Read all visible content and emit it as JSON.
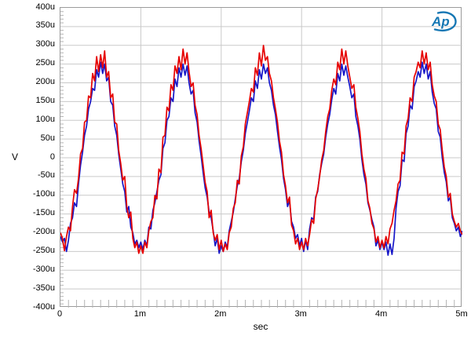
{
  "figure": {
    "ylabel": "V",
    "xlabel": "sec",
    "logo_text": "Ap"
  },
  "axes": {
    "y_tick_labels": [
      "400u",
      "350u",
      "300u",
      "250u",
      "200u",
      "150u",
      "100u",
      "50u",
      "0",
      "-50u",
      "-100u",
      "-150u",
      "-200u",
      "-250u",
      "-300u",
      "-350u",
      "-400u"
    ],
    "x_tick_labels": [
      "0",
      "1m",
      "2m",
      "3m",
      "4m",
      "5m"
    ]
  },
  "colors": {
    "red_trace": "#e60000",
    "blue_trace": "#1616c8",
    "grid": "#c9c9c9",
    "minor_tick": "#b4b4b4",
    "frame": "#9b9b9b",
    "logo_blue": "#1577b4",
    "text": "#000000"
  },
  "chart_data": {
    "type": "line",
    "title": "",
    "xlabel": "sec",
    "ylabel": "V",
    "x_unit": "ms",
    "y_unit": "uV",
    "xlim_ms": [
      0,
      5
    ],
    "ylim_uV": [
      -400,
      400
    ],
    "y_major_step_uV": 50,
    "y_minor_step_uV": 10,
    "x_major_step_ms": 1,
    "x_minor_step_ms": 0.1,
    "grid": true,
    "legend_position": "none",
    "x_start_ms": 0,
    "x_step_ms": 0.025,
    "series": [
      {
        "name": "blue-trace",
        "color_key": "blue_trace",
        "values_uV": [
          -210,
          -225,
          -215,
          -250,
          -220,
          -175,
          -160,
          -120,
          -130,
          -70,
          -20,
          15,
          60,
          85,
          130,
          150,
          185,
          180,
          235,
          215,
          255,
          225,
          250,
          205,
          215,
          150,
          140,
          85,
          60,
          10,
          -30,
          -70,
          -90,
          -145,
          -130,
          -185,
          -200,
          -230,
          -220,
          -240,
          -225,
          -245,
          -220,
          -235,
          -185,
          -190,
          -140,
          -120,
          -90,
          -60,
          -45,
          25,
          40,
          100,
          110,
          160,
          150,
          210,
          190,
          240,
          215,
          250,
          220,
          245,
          200,
          170,
          180,
          120,
          95,
          45,
          5,
          -40,
          -80,
          -105,
          -145,
          -160,
          -195,
          -235,
          -215,
          -255,
          -235,
          -250,
          -225,
          -240,
          -195,
          -170,
          -145,
          -110,
          -75,
          -55,
          -10,
          20,
          65,
          95,
          125,
          160,
          150,
          205,
          185,
          235,
          210,
          250,
          225,
          240,
          200,
          180,
          140,
          115,
          70,
          30,
          -5,
          -55,
          -85,
          -130,
          -115,
          -170,
          -185,
          -215,
          -205,
          -235,
          -215,
          -250,
          -220,
          -245,
          -190,
          -160,
          -165,
          -105,
          -90,
          -45,
          -15,
          10,
          55,
          90,
          115,
          155,
          185,
          170,
          225,
          205,
          250,
          220,
          245,
          215,
          190,
          160,
          170,
          110,
          85,
          50,
          -5,
          -45,
          -70,
          -120,
          -140,
          -165,
          -185,
          -235,
          -220,
          -245,
          -225,
          -245,
          -225,
          -260,
          -230,
          -258,
          -215,
          -135,
          -90,
          -75,
          -5,
          -10,
          65,
          85,
          140,
          130,
          190,
          205,
          230,
          215,
          255,
          225,
          250,
          210,
          230,
          175,
          145,
          130,
          70,
          55,
          0,
          -40,
          -65,
          -115,
          -105,
          -160,
          -175,
          -195,
          -185,
          -210,
          -195
        ]
      },
      {
        "name": "red-trace",
        "color_key": "red_trace",
        "values_uV": [
          -200,
          -215,
          -248,
          -210,
          -185,
          -195,
          -130,
          -85,
          -95,
          -55,
          10,
          25,
          95,
          100,
          165,
          160,
          225,
          205,
          270,
          230,
          275,
          240,
          285,
          215,
          230,
          160,
          170,
          95,
          90,
          20,
          -15,
          -60,
          -50,
          -130,
          -160,
          -145,
          -215,
          -240,
          -225,
          -255,
          -235,
          -255,
          -225,
          -240,
          -195,
          -170,
          -160,
          -100,
          -110,
          -30,
          -40,
          55,
          60,
          135,
          125,
          195,
          180,
          245,
          225,
          270,
          235,
          290,
          250,
          280,
          230,
          190,
          200,
          140,
          115,
          60,
          25,
          -20,
          -65,
          -90,
          -160,
          -140,
          -200,
          -220,
          -205,
          -245,
          -220,
          -250,
          -230,
          -245,
          -200,
          -185,
          -135,
          -120,
          -60,
          -70,
          5,
          30,
          90,
          120,
          150,
          185,
          175,
          240,
          220,
          280,
          245,
          300,
          260,
          270,
          225,
          205,
          160,
          130,
          95,
          45,
          15,
          -45,
          -75,
          -120,
          -105,
          -180,
          -195,
          -230,
          -215,
          -245,
          -225,
          -245,
          -215,
          -235,
          -205,
          -165,
          -175,
          -110,
          -85,
          -50,
          -5,
          20,
          70,
          110,
          130,
          180,
          210,
          195,
          255,
          235,
          290,
          250,
          285,
          245,
          215,
          185,
          195,
          135,
          105,
          70,
          10,
          -30,
          -55,
          -115,
          -135,
          -175,
          -190,
          -225,
          -210,
          -240,
          -220,
          -240,
          -210,
          -230,
          -190,
          -175,
          -140,
          -115,
          -70,
          -60,
          15,
          10,
          85,
          105,
          160,
          150,
          215,
          230,
          255,
          240,
          285,
          250,
          280,
          235,
          255,
          195,
          165,
          150,
          90,
          75,
          20,
          -25,
          -50,
          -105,
          -95,
          -150,
          -170,
          -185,
          -175,
          -195,
          -205
        ]
      }
    ]
  }
}
